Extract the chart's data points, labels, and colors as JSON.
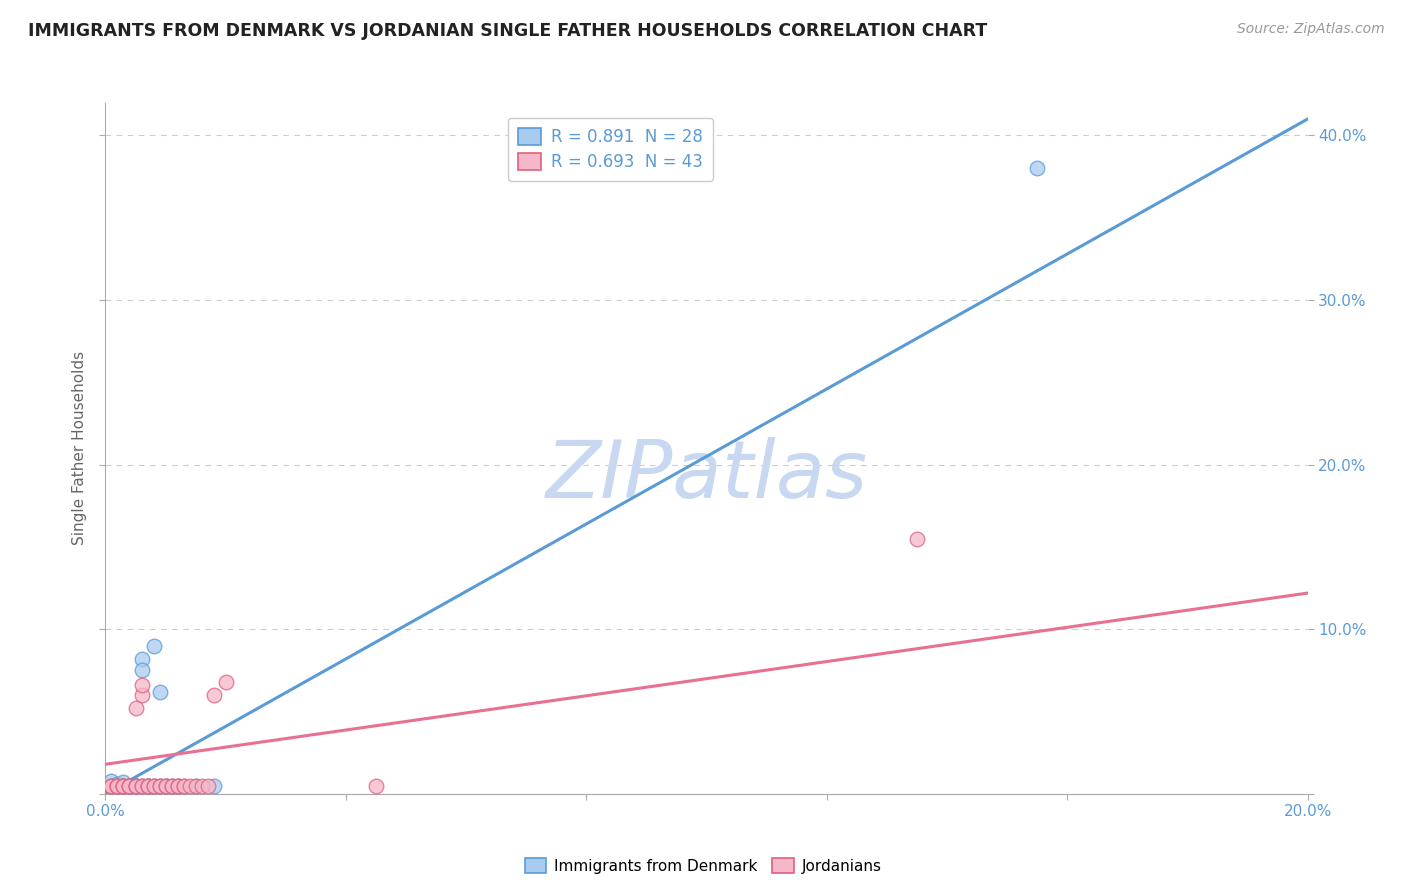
{
  "title": "IMMIGRANTS FROM DENMARK VS JORDANIAN SINGLE FATHER HOUSEHOLDS CORRELATION CHART",
  "source": "Source: ZipAtlas.com",
  "ylabel": "Single Father Households",
  "xlim": [
    0.0,
    0.2
  ],
  "ylim": [
    0.0,
    0.42
  ],
  "xtick_positions": [
    0.0,
    0.04,
    0.08,
    0.12,
    0.16,
    0.2
  ],
  "xtick_labels": [
    "0.0%",
    "",
    "",
    "",
    "",
    "20.0%"
  ],
  "ytick_positions": [
    0.0,
    0.1,
    0.2,
    0.3,
    0.4
  ],
  "ytick_labels_right": [
    "",
    "10.0%",
    "20.0%",
    "30.0%",
    "40.0%"
  ],
  "legend_r1": "R = 0.891  N = 28",
  "legend_r2": "R = 0.693  N = 43",
  "legend_label1": "Immigrants from Denmark",
  "legend_label2": "Jordanians",
  "blue_fill": "#A8CCF0",
  "blue_edge": "#5B9BD5",
  "pink_fill": "#F4B8C8",
  "pink_edge": "#E06080",
  "blue_line": "#5B9BD5",
  "pink_line": "#E87090",
  "watermark": "ZIPatlas",
  "watermark_color": "#C8D8F0",
  "blue_line_x0": 0.0,
  "blue_line_y0": 0.0,
  "blue_line_x1": 0.2,
  "blue_line_y1": 0.41,
  "pink_line_x0": 0.0,
  "pink_line_y0": 0.018,
  "pink_line_x1": 0.2,
  "pink_line_y1": 0.122,
  "denmark_scatter": [
    [
      0.001,
      0.005
    ],
    [
      0.001,
      0.008
    ],
    [
      0.002,
      0.005
    ],
    [
      0.002,
      0.006
    ],
    [
      0.003,
      0.005
    ],
    [
      0.003,
      0.007
    ],
    [
      0.003,
      0.005
    ],
    [
      0.004,
      0.005
    ],
    [
      0.004,
      0.005
    ],
    [
      0.005,
      0.005
    ],
    [
      0.005,
      0.005
    ],
    [
      0.005,
      0.005
    ],
    [
      0.006,
      0.082
    ],
    [
      0.006,
      0.075
    ],
    [
      0.006,
      0.005
    ],
    [
      0.007,
      0.005
    ],
    [
      0.007,
      0.005
    ],
    [
      0.008,
      0.09
    ],
    [
      0.008,
      0.005
    ],
    [
      0.009,
      0.062
    ],
    [
      0.009,
      0.005
    ],
    [
      0.01,
      0.005
    ],
    [
      0.01,
      0.005
    ],
    [
      0.011,
      0.005
    ],
    [
      0.012,
      0.005
    ],
    [
      0.015,
      0.005
    ],
    [
      0.018,
      0.005
    ],
    [
      0.155,
      0.38
    ]
  ],
  "jordan_scatter": [
    [
      0.001,
      0.005
    ],
    [
      0.001,
      0.005
    ],
    [
      0.001,
      0.005
    ],
    [
      0.002,
      0.005
    ],
    [
      0.002,
      0.005
    ],
    [
      0.002,
      0.005
    ],
    [
      0.003,
      0.005
    ],
    [
      0.003,
      0.005
    ],
    [
      0.003,
      0.005
    ],
    [
      0.004,
      0.005
    ],
    [
      0.004,
      0.005
    ],
    [
      0.004,
      0.005
    ],
    [
      0.005,
      0.005
    ],
    [
      0.005,
      0.005
    ],
    [
      0.005,
      0.005
    ],
    [
      0.005,
      0.052
    ],
    [
      0.006,
      0.06
    ],
    [
      0.006,
      0.066
    ],
    [
      0.006,
      0.005
    ],
    [
      0.006,
      0.005
    ],
    [
      0.007,
      0.005
    ],
    [
      0.007,
      0.005
    ],
    [
      0.007,
      0.005
    ],
    [
      0.008,
      0.005
    ],
    [
      0.008,
      0.005
    ],
    [
      0.009,
      0.005
    ],
    [
      0.009,
      0.005
    ],
    [
      0.01,
      0.005
    ],
    [
      0.01,
      0.005
    ],
    [
      0.011,
      0.005
    ],
    [
      0.011,
      0.005
    ],
    [
      0.012,
      0.005
    ],
    [
      0.012,
      0.005
    ],
    [
      0.013,
      0.005
    ],
    [
      0.013,
      0.005
    ],
    [
      0.014,
      0.005
    ],
    [
      0.015,
      0.005
    ],
    [
      0.016,
      0.005
    ],
    [
      0.017,
      0.005
    ],
    [
      0.018,
      0.06
    ],
    [
      0.02,
      0.068
    ],
    [
      0.045,
      0.005
    ],
    [
      0.135,
      0.155
    ]
  ]
}
